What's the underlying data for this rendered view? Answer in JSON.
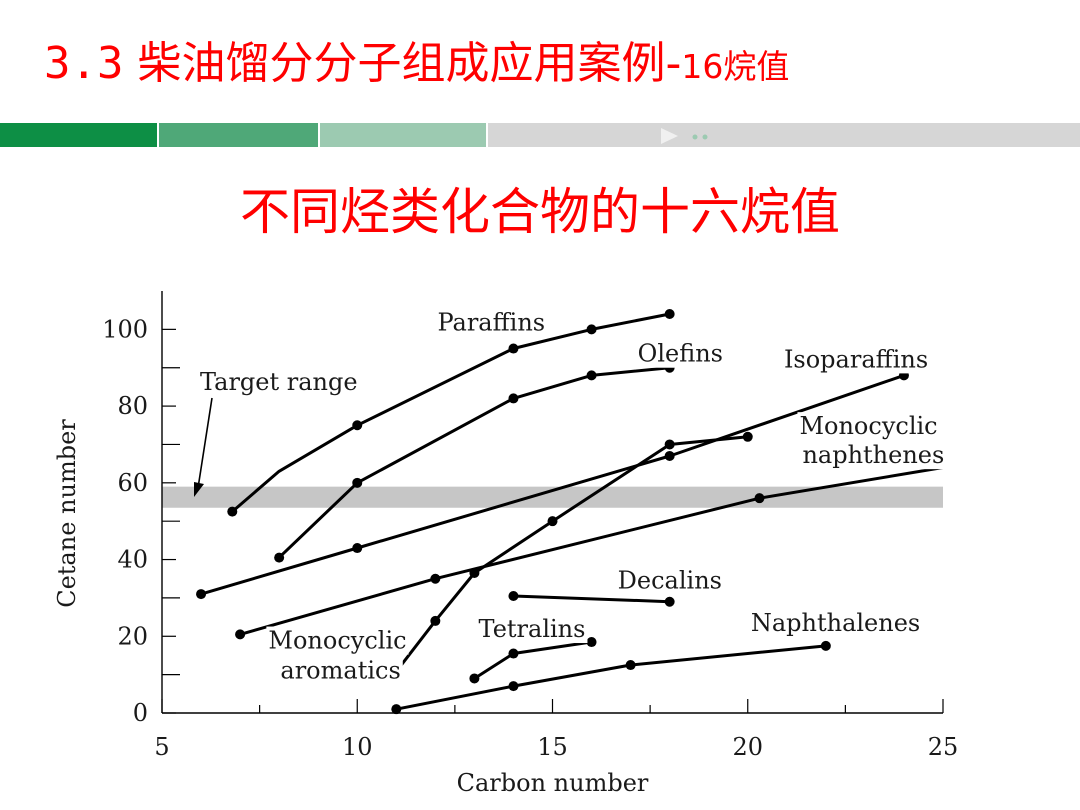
{
  "header": {
    "title_num": "3.3",
    "title_main": "柴油馏分分子组成应用案例-",
    "title_suffix": "16烷值",
    "nav_marker": "▶··"
  },
  "subtitle": "不同烃类化合物的十六烷值",
  "colors": {
    "title": "#ff0000",
    "bar_dark": "#0d8f45",
    "bar_mid": "#4fa878",
    "bar_light": "#9ccab1",
    "bar_gray": "#d6d6d6",
    "target_band": "#c6c6c6",
    "lines": "#000000"
  },
  "chart_data": {
    "type": "line",
    "xlabel": "Carbon number",
    "ylabel": "Cetane number",
    "xlim": [
      5,
      25
    ],
    "ylim": [
      0,
      110
    ],
    "xticks": [
      5,
      10,
      15,
      20,
      25
    ],
    "yticks": [
      0,
      20,
      40,
      60,
      80,
      100
    ],
    "target_range": {
      "label": "Target range",
      "y": [
        53.5,
        59
      ]
    },
    "grid": false,
    "series": [
      {
        "name": "Paraffins",
        "label_lines": [
          "Paraffins"
        ],
        "unmarked_points": [
          [
            8,
            63
          ]
        ],
        "points": [
          [
            6.8,
            52.5
          ],
          [
            10,
            75
          ],
          [
            14,
            95
          ],
          [
            16,
            100
          ],
          [
            18,
            104
          ]
        ]
      },
      {
        "name": "Olefins",
        "label_lines": [
          "Olefins"
        ],
        "points": [
          [
            8,
            40.5
          ],
          [
            10,
            60
          ],
          [
            14,
            82
          ],
          [
            16,
            88
          ],
          [
            18,
            90
          ]
        ]
      },
      {
        "name": "Isoparaffins",
        "label_lines": [
          "Isoparaffins"
        ],
        "points": [
          [
            6,
            31
          ],
          [
            10,
            43
          ],
          [
            18,
            67
          ],
          [
            24,
            88
          ]
        ]
      },
      {
        "name": "Monocyclic naphthenes",
        "label_lines": [
          "Monocyclic",
          "naphthenes"
        ],
        "unmarked_points": [
          [
            25,
            64
          ]
        ],
        "points": [
          [
            7,
            20.5
          ],
          [
            12,
            35
          ],
          [
            20.3,
            56
          ]
        ]
      },
      {
        "name": "Decalins",
        "label_lines": [
          "Decalins"
        ],
        "points": [
          [
            14,
            30.5
          ],
          [
            18,
            29
          ]
        ]
      },
      {
        "name": "Monocyclic aromatics",
        "label_lines": [
          "Monocyclic",
          "aromatics"
        ],
        "points": [
          [
            10.9,
            9.5
          ],
          [
            12,
            24
          ],
          [
            13,
            36.5
          ],
          [
            15,
            50
          ],
          [
            18,
            70
          ],
          [
            20,
            72
          ]
        ]
      },
      {
        "name": "Tetralins",
        "label_lines": [
          "Tetralins"
        ],
        "points": [
          [
            13,
            9
          ],
          [
            14,
            15.5
          ],
          [
            16,
            18.5
          ]
        ]
      },
      {
        "name": "Naphthalenes",
        "label_lines": [
          "Naphthalenes"
        ],
        "points": [
          [
            11,
            1
          ],
          [
            14,
            7
          ],
          [
            17,
            12.5
          ],
          [
            22,
            17.5
          ]
        ]
      }
    ]
  }
}
